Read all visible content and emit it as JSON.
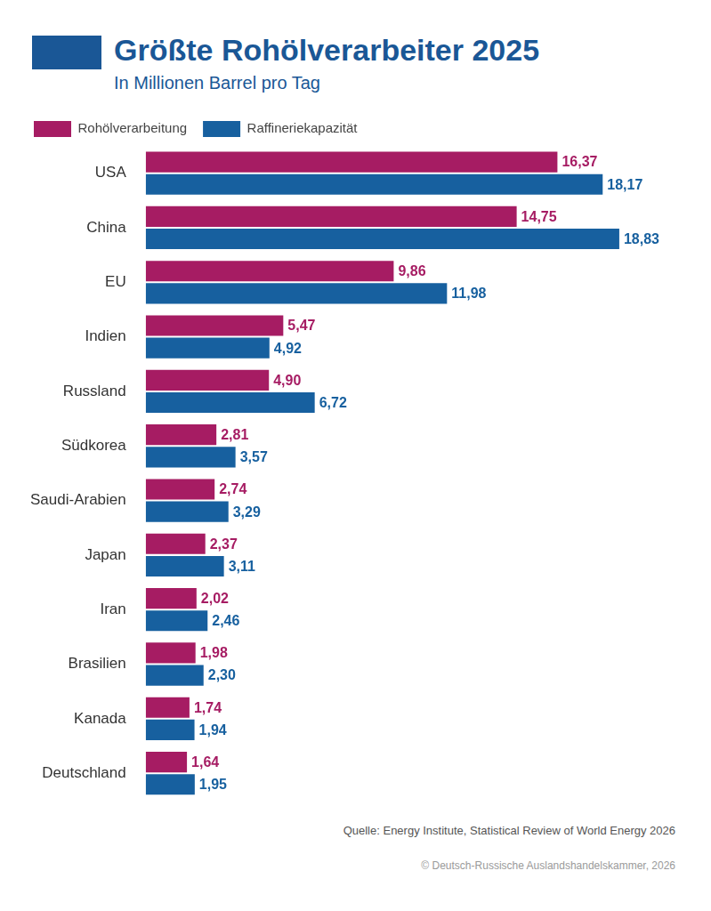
{
  "chart_data": {
    "type": "bar",
    "title": "Größte Rohölverarbeiter 2025",
    "subtitle": "In Millionen Barrel pro Tag",
    "orientation": "horizontal",
    "grid": false,
    "legend": "top",
    "data_labels": true,
    "tick_labels": "y",
    "categories": [
      "USA",
      "China",
      "EU",
      "Indien",
      "Russland",
      "Südkorea",
      "Saudi-Arabien",
      "Japan",
      "Iran",
      "Brasilien",
      "Kanada",
      "Deutschland"
    ],
    "series": [
      {
        "name": "Rohölverarbeitung",
        "color": "#a61c63",
        "values": [
          16.37,
          14.75,
          9.86,
          5.47,
          4.9,
          2.81,
          2.74,
          2.37,
          2.02,
          1.98,
          1.74,
          1.64
        ],
        "value_labels": [
          "16,37",
          "14,75",
          "9,86",
          "5,47",
          "4,90",
          "2,81",
          "2,74",
          "2,37",
          "2,02",
          "1,98",
          "1,74",
          "1,64"
        ]
      },
      {
        "name": "Raffineriekapazität",
        "color": "#17609f",
        "values": [
          18.17,
          18.83,
          11.98,
          4.92,
          6.72,
          3.57,
          3.29,
          3.11,
          2.46,
          2.3,
          1.94,
          1.95
        ],
        "value_labels": [
          "18,17",
          "18,83",
          "11,98",
          "4,92",
          "6,72",
          "3,57",
          "3,29",
          "3,11",
          "2,46",
          "2,30",
          "1,94",
          "1,95"
        ]
      }
    ],
    "xlim": [
      0,
      20
    ],
    "annotations": [
      "Quelle: Energy Institute, Statistical Review of World Energy 2026",
      "© Deutsch-Russische Auslandshandelskammer, 2026"
    ]
  }
}
